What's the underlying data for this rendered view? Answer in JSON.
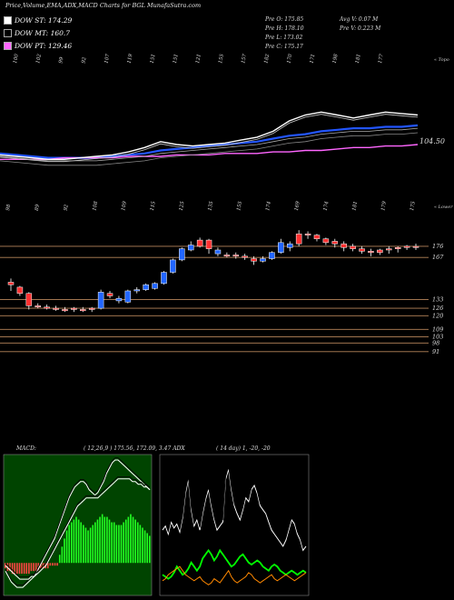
{
  "title": "Price,Volume,EMA,ADX,MACD Charts for BGL  MunafaSutra.com",
  "legend": [
    {
      "label": "DOW ST: 174.29",
      "color": "#ffffff"
    },
    {
      "label": "DOW MT: 160.7",
      "color": "#000000"
    },
    {
      "label": "DOW PT: 129.46",
      "color": "#ff66ff"
    }
  ],
  "ohlc": {
    "open": "Pre   O: 175.85",
    "high": "Pre   H: 178.10",
    "low": "Pre   L: 173.02",
    "close": "Pre   C: 175.17",
    "avg_vol": "Avg V: 0.07 M",
    "pre_vol": "Pre   V: 0.223 M"
  },
  "top_label": "« Topo",
  "lower_label": "« Lower",
  "ema_value_label": "104.50",
  "macd": {
    "label": "MACD:",
    "values": "( 12,26,9 ) 175.56, 172.09, 3.47 ADX",
    "adx_label": "( 14  day) 1, -20, -20"
  },
  "chart_data": [
    {
      "type": "line",
      "panel": "ema_and_volume_tops",
      "top_tick_labels": [
        "100",
        "102",
        "99",
        "92",
        "107",
        "119",
        "151",
        "151",
        "121",
        "155",
        "157",
        "182",
        "170",
        "171",
        "198",
        "181",
        "177"
      ],
      "series": [
        {
          "color": "#2255ff",
          "values": [
            100,
            99,
            98,
            97,
            97,
            97,
            97,
            98,
            99,
            100,
            102,
            103,
            104,
            105,
            106,
            107,
            108,
            110,
            112,
            113,
            115,
            116,
            117,
            117,
            118,
            118,
            119
          ]
        },
        {
          "color": "#ff66ff",
          "values": [
            96,
            96,
            96,
            96,
            97,
            97,
            97,
            97,
            98,
            98,
            98,
            99,
            99,
            99,
            100,
            100,
            100,
            101,
            101,
            102,
            102,
            103,
            104,
            104,
            105,
            105,
            106
          ]
        },
        {
          "color": "#ffffff",
          "values": [
            99,
            98,
            97,
            96,
            96,
            97,
            98,
            99,
            101,
            104,
            108,
            106,
            105,
            106,
            107,
            109,
            111,
            115,
            122,
            126,
            128,
            126,
            124,
            126,
            128,
            127,
            126
          ]
        }
      ]
    },
    {
      "type": "candlestick",
      "panel": "price",
      "top_tick_labels": [
        "98",
        "89",
        "92",
        "108",
        "109",
        "115",
        "125",
        "135",
        "155",
        "174",
        "169",
        "174",
        "181",
        "179",
        "175"
      ],
      "levels": [
        176,
        167,
        133,
        126,
        120,
        109,
        103,
        98,
        91
      ],
      "candles": [
        {
          "o": 147,
          "h": 150,
          "l": 140,
          "c": 145,
          "color": "red"
        },
        {
          "o": 143,
          "h": 144,
          "l": 136,
          "c": 138,
          "color": "red"
        },
        {
          "o": 138,
          "h": 139,
          "l": 125,
          "c": 128,
          "color": "red"
        },
        {
          "o": 128,
          "h": 130,
          "l": 126,
          "c": 127,
          "color": "red"
        },
        {
          "o": 127,
          "h": 129,
          "l": 125,
          "c": 126,
          "color": "red"
        },
        {
          "o": 126,
          "h": 128,
          "l": 124,
          "c": 125,
          "color": "red"
        },
        {
          "o": 125,
          "h": 127,
          "l": 123,
          "c": 124,
          "color": "red"
        },
        {
          "o": 125,
          "h": 127,
          "l": 123,
          "c": 126,
          "color": "red"
        },
        {
          "o": 124,
          "h": 127,
          "l": 123,
          "c": 125,
          "color": "red"
        },
        {
          "o": 125,
          "h": 127,
          "l": 123,
          "c": 126,
          "color": "red"
        },
        {
          "o": 126,
          "h": 141,
          "l": 125,
          "c": 139,
          "color": "blue"
        },
        {
          "o": 138,
          "h": 140,
          "l": 134,
          "c": 136,
          "color": "red"
        },
        {
          "o": 134,
          "h": 136,
          "l": 130,
          "c": 132,
          "color": "blue"
        },
        {
          "o": 131,
          "h": 141,
          "l": 130,
          "c": 140,
          "color": "blue"
        },
        {
          "o": 140,
          "h": 143,
          "l": 138,
          "c": 141,
          "color": "blue"
        },
        {
          "o": 141,
          "h": 146,
          "l": 140,
          "c": 145,
          "color": "blue"
        },
        {
          "o": 142,
          "h": 147,
          "l": 141,
          "c": 146,
          "color": "blue"
        },
        {
          "o": 146,
          "h": 156,
          "l": 145,
          "c": 155,
          "color": "blue"
        },
        {
          "o": 155,
          "h": 166,
          "l": 154,
          "c": 165,
          "color": "blue"
        },
        {
          "o": 165,
          "h": 175,
          "l": 164,
          "c": 174,
          "color": "blue"
        },
        {
          "o": 173,
          "h": 180,
          "l": 172,
          "c": 177,
          "color": "blue"
        },
        {
          "o": 176,
          "h": 183,
          "l": 175,
          "c": 181,
          "color": "red"
        },
        {
          "o": 181,
          "h": 182,
          "l": 170,
          "c": 174,
          "color": "red"
        },
        {
          "o": 173,
          "h": 175,
          "l": 168,
          "c": 170,
          "color": "blue"
        },
        {
          "o": 169,
          "h": 171,
          "l": 167,
          "c": 168,
          "color": "red"
        },
        {
          "o": 168,
          "h": 171,
          "l": 166,
          "c": 169,
          "color": "red"
        },
        {
          "o": 168,
          "h": 170,
          "l": 165,
          "c": 167,
          "color": "red"
        },
        {
          "o": 166,
          "h": 168,
          "l": 161,
          "c": 164,
          "color": "red"
        },
        {
          "o": 164,
          "h": 168,
          "l": 163,
          "c": 166,
          "color": "blue"
        },
        {
          "o": 166,
          "h": 172,
          "l": 165,
          "c": 171,
          "color": "blue"
        },
        {
          "o": 171,
          "h": 182,
          "l": 170,
          "c": 179,
          "color": "blue"
        },
        {
          "o": 178,
          "h": 180,
          "l": 172,
          "c": 175,
          "color": "blue"
        },
        {
          "o": 178,
          "h": 189,
          "l": 176,
          "c": 186,
          "color": "red"
        },
        {
          "o": 186,
          "h": 188,
          "l": 182,
          "c": 185,
          "color": "red"
        },
        {
          "o": 185,
          "h": 186,
          "l": 180,
          "c": 182,
          "color": "red"
        },
        {
          "o": 182,
          "h": 183,
          "l": 177,
          "c": 179,
          "color": "red"
        },
        {
          "o": 180,
          "h": 182,
          "l": 175,
          "c": 178,
          "color": "red"
        },
        {
          "o": 178,
          "h": 180,
          "l": 172,
          "c": 175,
          "color": "red"
        },
        {
          "o": 176,
          "h": 178,
          "l": 172,
          "c": 174,
          "color": "red"
        },
        {
          "o": 174,
          "h": 176,
          "l": 170,
          "c": 172,
          "color": "red"
        },
        {
          "o": 172,
          "h": 174,
          "l": 168,
          "c": 171,
          "color": "red"
        },
        {
          "o": 171,
          "h": 174,
          "l": 169,
          "c": 173,
          "color": "red"
        },
        {
          "o": 173,
          "h": 176,
          "l": 170,
          "c": 174,
          "color": "red"
        },
        {
          "o": 174,
          "h": 176,
          "l": 171,
          "c": 175,
          "color": "red"
        },
        {
          "o": 175,
          "h": 177,
          "l": 173,
          "c": 176,
          "color": "red"
        },
        {
          "o": 175.85,
          "h": 178.1,
          "l": 173.02,
          "c": 175.17,
          "color": "red"
        }
      ]
    },
    {
      "type": "bar",
      "panel": "macd",
      "histogram": [
        -2,
        -3,
        -3,
        -4,
        -4,
        -4,
        -4,
        -4,
        -4,
        -4,
        -4,
        -3,
        -3,
        -3,
        -3,
        -2,
        -2,
        -2,
        -2,
        -1,
        -1,
        -1,
        -1,
        3,
        6,
        9,
        12,
        14,
        15,
        16,
        17,
        16,
        15,
        14,
        13,
        12,
        13,
        14,
        15,
        16,
        17,
        18,
        17,
        17,
        16,
        15,
        15,
        14,
        14,
        14,
        15,
        16,
        17,
        18,
        17,
        16,
        15,
        14,
        13,
        12,
        11,
        10
      ],
      "series": [
        {
          "color": "#ffffff",
          "values": [
            -3,
            -5,
            -7,
            -8,
            -9,
            -9,
            -9,
            -8,
            -7,
            -6,
            -5,
            -3,
            -1,
            1,
            3,
            5,
            7,
            9,
            12,
            15,
            18,
            21,
            24,
            26,
            28,
            29,
            30,
            30,
            29,
            27,
            26,
            25,
            26,
            28,
            30,
            33,
            35,
            37,
            38,
            38,
            37,
            36,
            35,
            34,
            33,
            32,
            31,
            30,
            29,
            28,
            27
          ]
        },
        {
          "color": "#ffffff",
          "values": [
            -1,
            -2,
            -3,
            -4,
            -5,
            -6,
            -6,
            -6,
            -6,
            -5,
            -5,
            -4,
            -3,
            -2,
            -1,
            1,
            3,
            5,
            7,
            9,
            11,
            13,
            15,
            17,
            19,
            21,
            22,
            23,
            24,
            24,
            24,
            24,
            24,
            25,
            26,
            27,
            28,
            29,
            30,
            31,
            31,
            31,
            31,
            31,
            30,
            30,
            29,
            29,
            28,
            28,
            27
          ]
        }
      ]
    },
    {
      "type": "line",
      "panel": "adx",
      "series": [
        {
          "color": "#ffffff",
          "values": [
            30,
            32,
            28,
            34,
            31,
            33,
            29,
            36,
            48,
            55,
            40,
            32,
            35,
            30,
            38,
            45,
            50,
            42,
            35,
            30,
            32,
            34,
            55,
            60,
            50,
            42,
            38,
            35,
            40,
            46,
            44,
            50,
            52,
            48,
            42,
            40,
            38,
            34,
            30,
            28,
            26,
            24,
            22,
            25,
            30,
            35,
            33,
            28,
            25,
            20,
            22
          ]
        },
        {
          "color": "#00ff00",
          "values": [
            8,
            7,
            6,
            7,
            9,
            12,
            10,
            8,
            9,
            11,
            14,
            12,
            10,
            12,
            16,
            18,
            20,
            18,
            15,
            17,
            20,
            18,
            16,
            14,
            12,
            13,
            15,
            17,
            18,
            16,
            14,
            13,
            14,
            15,
            14,
            12,
            11,
            10,
            12,
            13,
            12,
            10,
            9,
            8,
            9,
            10,
            9,
            8,
            9,
            10,
            9
          ]
        },
        {
          "color": "#ff8800",
          "values": [
            5,
            6,
            8,
            9,
            10,
            11,
            12,
            10,
            8,
            7,
            6,
            5,
            6,
            7,
            5,
            4,
            3,
            4,
            6,
            5,
            4,
            6,
            8,
            10,
            7,
            5,
            4,
            5,
            6,
            7,
            9,
            8,
            6,
            5,
            4,
            5,
            6,
            7,
            8,
            6,
            5,
            6,
            7,
            8,
            7,
            6,
            5,
            6,
            7,
            8,
            9
          ]
        }
      ]
    }
  ]
}
